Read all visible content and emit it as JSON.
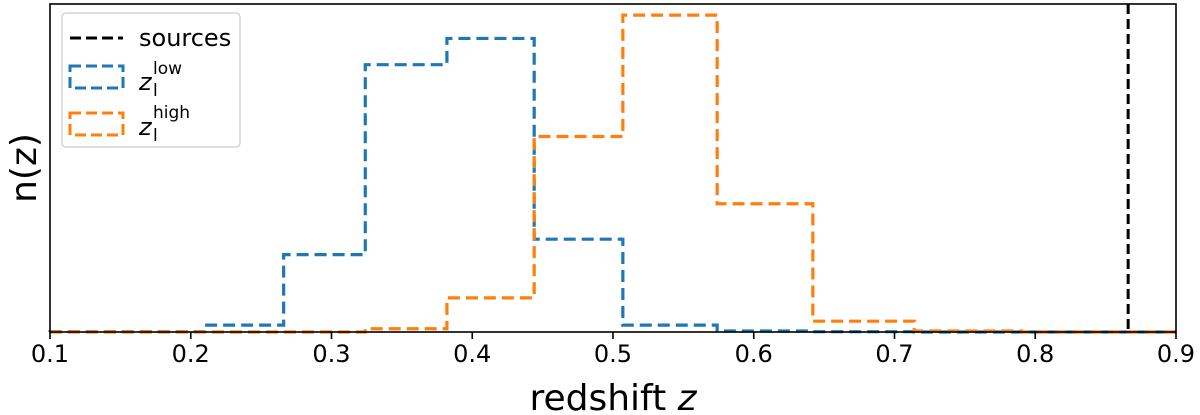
{
  "chart_data": {
    "type": "histogram",
    "title": "",
    "xlabel": "redshift",
    "xlabel_var": "z",
    "ylabel": "n(z)",
    "xlim": [
      0.1,
      0.9
    ],
    "ylim": [
      0,
      1.0
    ],
    "yticks_shown": false,
    "grid": false,
    "xticks": [
      0.1,
      0.2,
      0.3,
      0.4,
      0.5,
      0.6,
      0.7,
      0.8,
      0.9
    ],
    "xtick_labels": [
      "0.1",
      "0.2",
      "0.3",
      "0.4",
      "0.5",
      "0.6",
      "0.7",
      "0.8",
      "0.9"
    ],
    "legend_position": "top-left",
    "legend": [
      {
        "label": "sources",
        "color": "#000000",
        "style": "dashed-line"
      },
      {
        "label_var": "z",
        "label_sub": "l",
        "label_sup": "low",
        "color": "#1f77b4",
        "style": "dashed-box"
      },
      {
        "label_var": "z",
        "label_sub": "l",
        "label_sup": "high",
        "color": "#ff7f0e",
        "style": "dashed-box"
      }
    ],
    "vlines": [
      {
        "name": "sources",
        "x": 0.866,
        "color": "#000000"
      }
    ],
    "series": [
      {
        "name": "z_l low",
        "color": "#1f77b4",
        "bin_edges": [
          0.1,
          0.21,
          0.266,
          0.324,
          0.382,
          0.444,
          0.507,
          0.574,
          0.642,
          0.714,
          0.79,
          0.9
        ],
        "values": [
          0.001,
          0.021,
          0.236,
          0.815,
          0.895,
          0.283,
          0.021,
          0.003,
          0.001,
          0.0,
          0.0
        ]
      },
      {
        "name": "z_l high",
        "color": "#ff7f0e",
        "bin_edges": [
          0.1,
          0.21,
          0.266,
          0.324,
          0.382,
          0.444,
          0.507,
          0.574,
          0.642,
          0.714,
          0.79,
          0.9
        ],
        "values": [
          0.0,
          0.0,
          0.0,
          0.01,
          0.104,
          0.596,
          0.966,
          0.391,
          0.033,
          0.003,
          0.0
        ]
      }
    ]
  }
}
